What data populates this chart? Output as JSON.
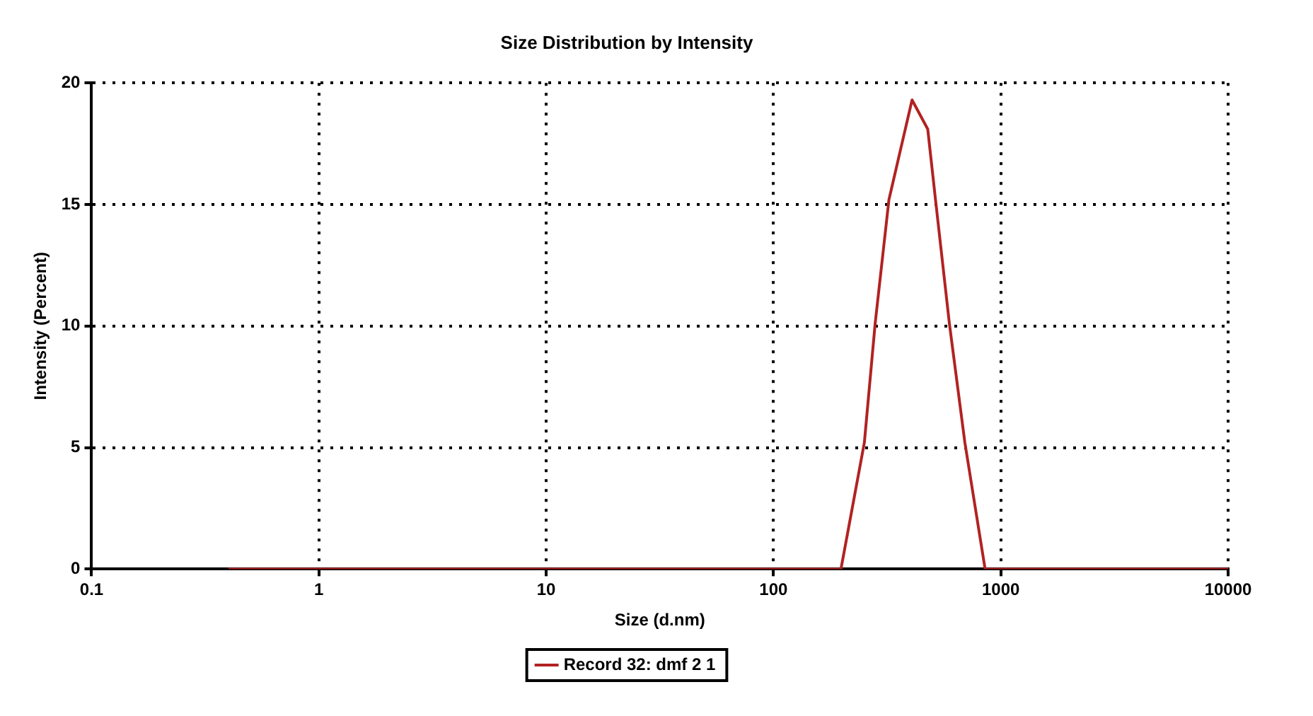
{
  "chart_data": {
    "type": "line",
    "title": "Size Distribution by Intensity",
    "xlabel": "Size (d.nm)",
    "ylabel": "Intensity (Percent)",
    "log": "x",
    "xlim": [
      0.1,
      10000
    ],
    "xticks": [
      0.1,
      1,
      10,
      100,
      1000,
      10000
    ],
    "ylim": [
      0,
      20
    ],
    "yticks": [
      0,
      5,
      10,
      15,
      20
    ],
    "grid": true,
    "legend": "bottom",
    "marker": "none",
    "line_style": "solid",
    "series": [
      {
        "name": "Record 32: dmf 2 1",
        "color": "#b22222",
        "x": [
          0.4,
          198,
          251,
          280,
          322,
          407,
          477,
          516,
          594,
          695,
          853,
          10000
        ],
        "values": [
          0,
          0,
          5.2,
          10.1,
          15.2,
          19.3,
          18.1,
          15.2,
          10.1,
          5.2,
          0,
          0
        ]
      }
    ]
  }
}
